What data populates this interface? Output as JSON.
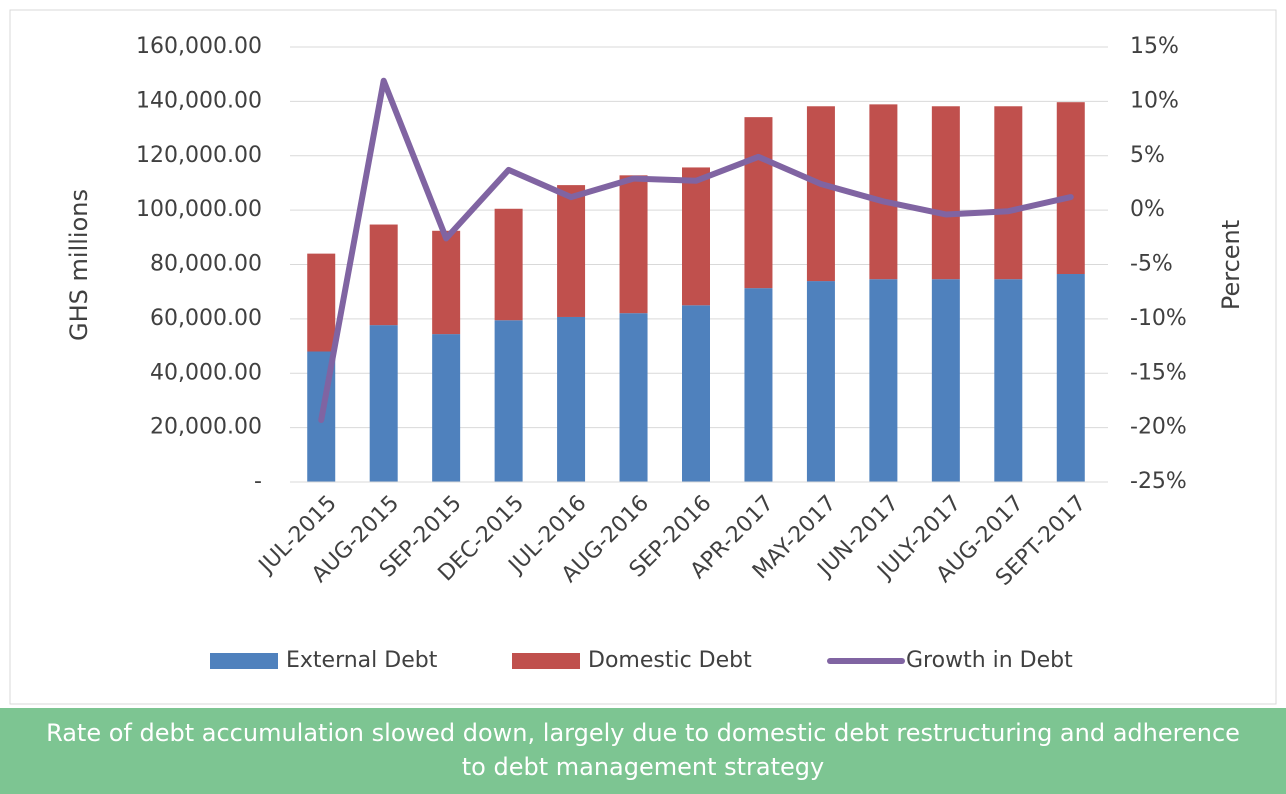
{
  "chart_data": {
    "type": "bar",
    "stacked": true,
    "categories": [
      "JUL-2015",
      "AUG-2015",
      "SEP-2015",
      "DEC-2015",
      "JUL-2016",
      "AUG-2016",
      "SEP-2016",
      "APR-2017",
      "MAY-2017",
      "JUN-2017",
      "JULY-2017",
      "AUG-2017",
      "SEPT-2017"
    ],
    "series": [
      {
        "name": "External Debt",
        "type": "bar",
        "color": "#4f81bd",
        "values": [
          48000,
          57700,
          54400,
          59500,
          60700,
          62100,
          65000,
          71300,
          73900,
          74600,
          74600,
          74600,
          76500
        ]
      },
      {
        "name": "Domestic Debt",
        "type": "bar",
        "color": "#c0504d",
        "values": [
          36000,
          37000,
          38000,
          41000,
          48500,
          50700,
          50700,
          62900,
          64300,
          64300,
          63600,
          63600,
          63200
        ]
      },
      {
        "name": "Growth in Debt",
        "type": "line",
        "axis": "y2",
        "color": "#8064a2",
        "values": [
          -19.3,
          11.9,
          -2.6,
          3.7,
          1.2,
          2.9,
          2.7,
          4.9,
          2.4,
          0.8,
          -0.4,
          -0.1,
          1.2
        ]
      }
    ],
    "y_label": "GHS millions",
    "y2_label": "Percent",
    "ylim": [
      0,
      160000
    ],
    "yticks": [
      {
        "value": 0,
        "label": "-"
      },
      {
        "value": 20000,
        "label": "20,000.00"
      },
      {
        "value": 40000,
        "label": "40,000.00"
      },
      {
        "value": 60000,
        "label": "60,000.00"
      },
      {
        "value": 80000,
        "label": "80,000.00"
      },
      {
        "value": 100000,
        "label": "100,000.00"
      },
      {
        "value": 120000,
        "label": "120,000.00"
      },
      {
        "value": 140000,
        "label": "140,000.00"
      },
      {
        "value": 160000,
        "label": "160,000.00"
      }
    ],
    "y2lim": [
      -25,
      15
    ],
    "y2ticks": [
      {
        "value": -25,
        "label": "-25%"
      },
      {
        "value": -20,
        "label": "-20%"
      },
      {
        "value": -15,
        "label": "-15%"
      },
      {
        "value": -10,
        "label": "-10%"
      },
      {
        "value": -5,
        "label": "-5%"
      },
      {
        "value": 0,
        "label": "0%"
      },
      {
        "value": 5,
        "label": "5%"
      },
      {
        "value": 10,
        "label": "10%"
      },
      {
        "value": 15,
        "label": "15%"
      }
    ],
    "grid": true,
    "legend": "bottom",
    "caption": "Rate of debt accumulation slowed down, largely due to domestic debt restructuring and adherence to debt management strategy"
  }
}
